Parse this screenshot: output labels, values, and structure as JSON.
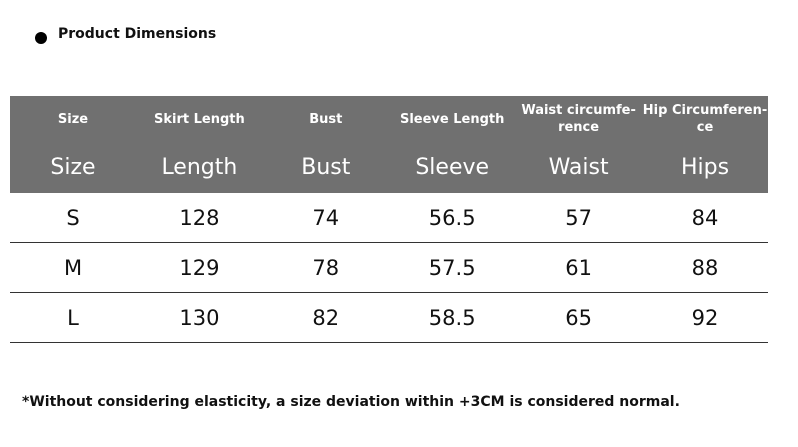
{
  "header": {
    "title": "Product Dimensions"
  },
  "table": {
    "header_rows": [
      [
        "Size",
        "Skirt Length",
        "Bust",
        "Sleeve Length",
        "Waist circumfe-\nrence",
        "Hip Circumferen-\nce"
      ],
      [
        "Size",
        "Length",
        "Bust",
        "Sleeve",
        "Waist",
        "Hips"
      ]
    ],
    "rows": [
      [
        "S",
        128,
        74,
        56.5,
        57,
        84
      ],
      [
        "M",
        129,
        78,
        57.5,
        61,
        88
      ],
      [
        "L",
        130,
        82,
        58.5,
        65,
        92
      ]
    ]
  },
  "footnote": "*Without considering elasticity, a size deviation within +3CM is considered normal."
}
